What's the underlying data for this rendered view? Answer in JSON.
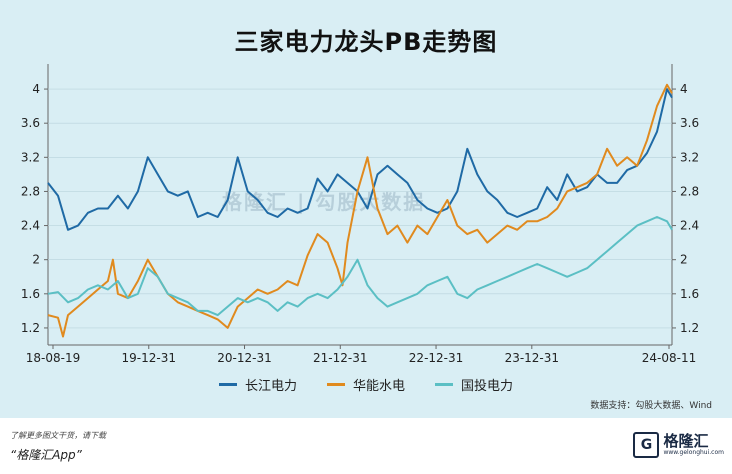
{
  "chart_data": {
    "type": "line",
    "title": "三家电力龙头PB走势图",
    "x_labels": [
      "18-08-19",
      "19-12-31",
      "20-12-31",
      "21-12-31",
      "22-12-31",
      "23-12-31",
      "24-08-11"
    ],
    "y_ticks": [
      "1.2",
      "1.6",
      "2",
      "2.4",
      "2.8",
      "3.2",
      "3.6",
      "4"
    ],
    "ylim": [
      1.0,
      4.2
    ],
    "grid": true,
    "legend_position": "bottom",
    "series": [
      {
        "name": "长江电力",
        "color": "#1f6aa5",
        "points": [
          [
            0,
            2.9
          ],
          [
            4,
            2.75
          ],
          [
            8,
            2.35
          ],
          [
            12,
            2.4
          ],
          [
            16,
            2.55
          ],
          [
            20,
            2.6
          ],
          [
            24,
            2.6
          ],
          [
            28,
            2.75
          ],
          [
            32,
            2.6
          ],
          [
            36,
            2.8
          ],
          [
            40,
            3.2
          ],
          [
            44,
            3.0
          ],
          [
            48,
            2.8
          ],
          [
            52,
            2.75
          ],
          [
            56,
            2.8
          ],
          [
            60,
            2.5
          ],
          [
            64,
            2.55
          ],
          [
            68,
            2.5
          ],
          [
            72,
            2.7
          ],
          [
            76,
            3.2
          ],
          [
            80,
            2.8
          ],
          [
            84,
            2.7
          ],
          [
            88,
            2.55
          ],
          [
            92,
            2.5
          ],
          [
            96,
            2.6
          ],
          [
            100,
            2.55
          ],
          [
            104,
            2.6
          ],
          [
            108,
            2.95
          ],
          [
            112,
            2.8
          ],
          [
            116,
            3.0
          ],
          [
            120,
            2.9
          ],
          [
            124,
            2.8
          ],
          [
            128,
            2.6
          ],
          [
            132,
            3.0
          ],
          [
            136,
            3.1
          ],
          [
            140,
            3.0
          ],
          [
            144,
            2.9
          ],
          [
            148,
            2.7
          ],
          [
            152,
            2.6
          ],
          [
            156,
            2.55
          ],
          [
            160,
            2.6
          ],
          [
            164,
            2.8
          ],
          [
            168,
            3.3
          ],
          [
            172,
            3.0
          ],
          [
            176,
            2.8
          ],
          [
            180,
            2.7
          ],
          [
            184,
            2.55
          ],
          [
            188,
            2.5
          ],
          [
            192,
            2.55
          ],
          [
            196,
            2.6
          ],
          [
            200,
            2.85
          ],
          [
            204,
            2.7
          ],
          [
            208,
            3.0
          ],
          [
            212,
            2.8
          ],
          [
            216,
            2.85
          ],
          [
            220,
            3.0
          ],
          [
            224,
            2.9
          ],
          [
            228,
            2.9
          ],
          [
            232,
            3.05
          ],
          [
            236,
            3.1
          ],
          [
            240,
            3.25
          ],
          [
            244,
            3.5
          ],
          [
            248,
            4.0
          ],
          [
            250,
            3.9
          ]
        ]
      },
      {
        "name": "华能水电",
        "color": "#e08a1e",
        "points": [
          [
            0,
            1.35
          ],
          [
            4,
            1.32
          ],
          [
            6,
            1.1
          ],
          [
            8,
            1.35
          ],
          [
            12,
            1.45
          ],
          [
            16,
            1.55
          ],
          [
            20,
            1.65
          ],
          [
            24,
            1.75
          ],
          [
            26,
            2.0
          ],
          [
            28,
            1.6
          ],
          [
            32,
            1.55
          ],
          [
            36,
            1.75
          ],
          [
            40,
            2.0
          ],
          [
            44,
            1.8
          ],
          [
            48,
            1.6
          ],
          [
            52,
            1.5
          ],
          [
            56,
            1.45
          ],
          [
            60,
            1.4
          ],
          [
            64,
            1.35
          ],
          [
            68,
            1.3
          ],
          [
            72,
            1.2
          ],
          [
            76,
            1.45
          ],
          [
            80,
            1.55
          ],
          [
            84,
            1.65
          ],
          [
            88,
            1.6
          ],
          [
            92,
            1.65
          ],
          [
            96,
            1.75
          ],
          [
            100,
            1.7
          ],
          [
            104,
            2.05
          ],
          [
            108,
            2.3
          ],
          [
            112,
            2.2
          ],
          [
            116,
            1.9
          ],
          [
            118,
            1.7
          ],
          [
            120,
            2.2
          ],
          [
            124,
            2.8
          ],
          [
            128,
            3.2
          ],
          [
            132,
            2.6
          ],
          [
            136,
            2.3
          ],
          [
            140,
            2.4
          ],
          [
            144,
            2.2
          ],
          [
            148,
            2.4
          ],
          [
            152,
            2.3
          ],
          [
            156,
            2.5
          ],
          [
            160,
            2.7
          ],
          [
            164,
            2.4
          ],
          [
            168,
            2.3
          ],
          [
            172,
            2.35
          ],
          [
            176,
            2.2
          ],
          [
            180,
            2.3
          ],
          [
            184,
            2.4
          ],
          [
            188,
            2.35
          ],
          [
            192,
            2.45
          ],
          [
            196,
            2.45
          ],
          [
            200,
            2.5
          ],
          [
            204,
            2.6
          ],
          [
            208,
            2.8
          ],
          [
            212,
            2.85
          ],
          [
            216,
            2.9
          ],
          [
            220,
            3.0
          ],
          [
            224,
            3.3
          ],
          [
            228,
            3.1
          ],
          [
            232,
            3.2
          ],
          [
            236,
            3.1
          ],
          [
            240,
            3.4
          ],
          [
            244,
            3.8
          ],
          [
            248,
            4.05
          ],
          [
            250,
            3.95
          ]
        ]
      },
      {
        "name": "国投电力",
        "color": "#5bbfc4",
        "points": [
          [
            0,
            1.6
          ],
          [
            4,
            1.62
          ],
          [
            8,
            1.5
          ],
          [
            12,
            1.55
          ],
          [
            16,
            1.65
          ],
          [
            20,
            1.7
          ],
          [
            24,
            1.65
          ],
          [
            28,
            1.75
          ],
          [
            32,
            1.55
          ],
          [
            36,
            1.6
          ],
          [
            40,
            1.9
          ],
          [
            44,
            1.8
          ],
          [
            48,
            1.6
          ],
          [
            52,
            1.55
          ],
          [
            56,
            1.5
          ],
          [
            60,
            1.4
          ],
          [
            64,
            1.4
          ],
          [
            68,
            1.35
          ],
          [
            72,
            1.45
          ],
          [
            76,
            1.55
          ],
          [
            80,
            1.5
          ],
          [
            84,
            1.55
          ],
          [
            88,
            1.5
          ],
          [
            92,
            1.4
          ],
          [
            96,
            1.5
          ],
          [
            100,
            1.45
          ],
          [
            104,
            1.55
          ],
          [
            108,
            1.6
          ],
          [
            112,
            1.55
          ],
          [
            116,
            1.65
          ],
          [
            120,
            1.8
          ],
          [
            124,
            2.0
          ],
          [
            128,
            1.7
          ],
          [
            132,
            1.55
          ],
          [
            136,
            1.45
          ],
          [
            140,
            1.5
          ],
          [
            144,
            1.55
          ],
          [
            148,
            1.6
          ],
          [
            152,
            1.7
          ],
          [
            156,
            1.75
          ],
          [
            160,
            1.8
          ],
          [
            164,
            1.6
          ],
          [
            168,
            1.55
          ],
          [
            172,
            1.65
          ],
          [
            176,
            1.7
          ],
          [
            180,
            1.75
          ],
          [
            184,
            1.8
          ],
          [
            188,
            1.85
          ],
          [
            192,
            1.9
          ],
          [
            196,
            1.95
          ],
          [
            200,
            1.9
          ],
          [
            204,
            1.85
          ],
          [
            208,
            1.8
          ],
          [
            212,
            1.85
          ],
          [
            216,
            1.9
          ],
          [
            220,
            2.0
          ],
          [
            224,
            2.1
          ],
          [
            228,
            2.2
          ],
          [
            232,
            2.3
          ],
          [
            236,
            2.4
          ],
          [
            240,
            2.45
          ],
          [
            244,
            2.5
          ],
          [
            248,
            2.45
          ],
          [
            250,
            2.35
          ]
        ]
      }
    ]
  },
  "watermark_text": "格隆汇 | 勾股大数据",
  "source_text": "数据支持：勾股大数据、Wind",
  "footer": {
    "note": "了解更多图文干货，请下载",
    "app": "“格隆汇App”",
    "logo_text": "格隆汇",
    "logo_sub": "www.gelonghui.com"
  }
}
